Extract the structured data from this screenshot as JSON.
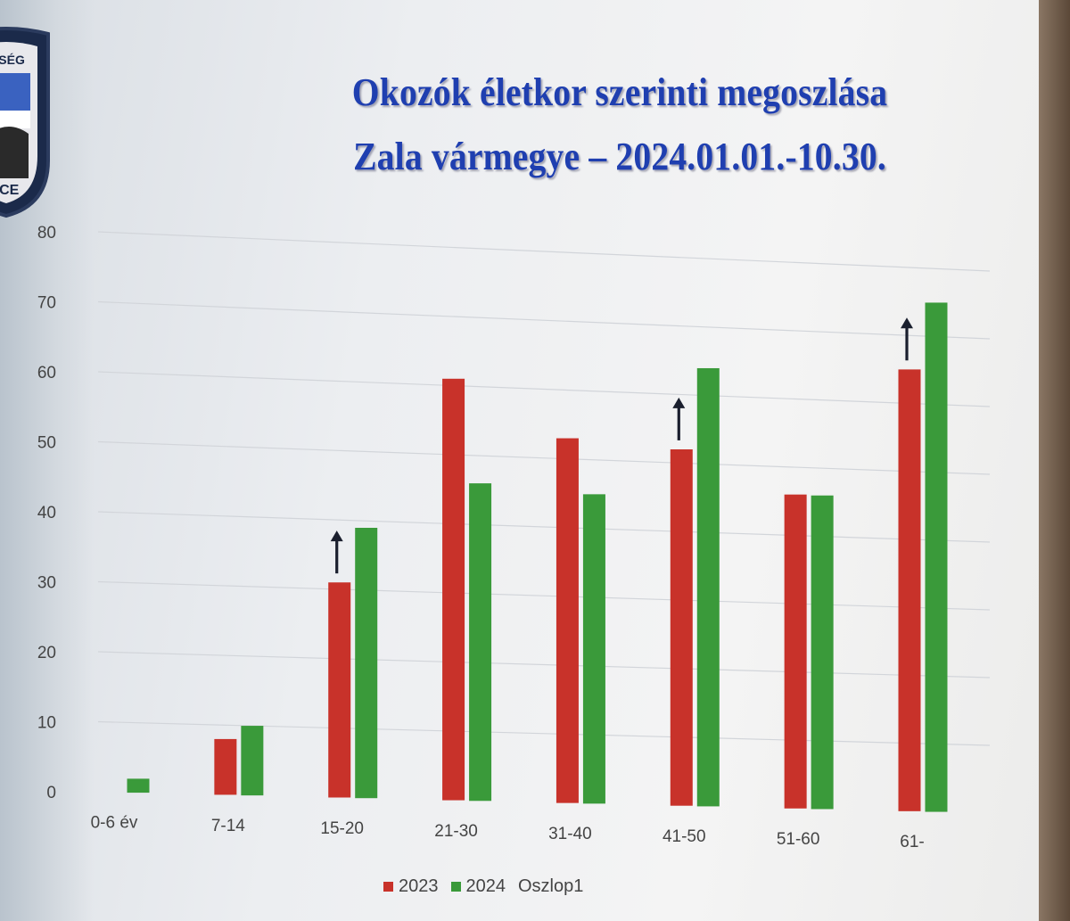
{
  "slide": {
    "title_line1": "Okozók életkor szerinti megoszlása",
    "title_line2": "Zala vármegye – 2024.01.01.-10.30.",
    "badge_text_top": "RSÉG",
    "badge_text_bottom": "ICE"
  },
  "colors": {
    "series_2023": "#c8322a",
    "series_2024": "#3a9a3a",
    "title": "#1f3fb0",
    "arrow": "#1a1f2e"
  },
  "chart_data": {
    "type": "bar",
    "categories": [
      "0-6 év",
      "7-14",
      "15-20",
      "21-30",
      "31-40",
      "41-50",
      "51-60",
      "61-"
    ],
    "series": [
      {
        "name": "2023",
        "values": [
          0,
          8,
          31,
          61,
          53,
          52,
          46,
          65
        ]
      },
      {
        "name": "2024",
        "values": [
          2,
          10,
          39,
          46,
          45,
          64,
          46,
          75
        ]
      }
    ],
    "legend": [
      "2023",
      "2024",
      "Oszlop1"
    ],
    "yticks": [
      0,
      10,
      20,
      30,
      40,
      50,
      60,
      70,
      80
    ],
    "ylim": [
      0,
      80
    ],
    "grid": true,
    "legend_position": "bottom",
    "increase_arrows": [
      "15-20",
      "41-50",
      "61-"
    ]
  }
}
